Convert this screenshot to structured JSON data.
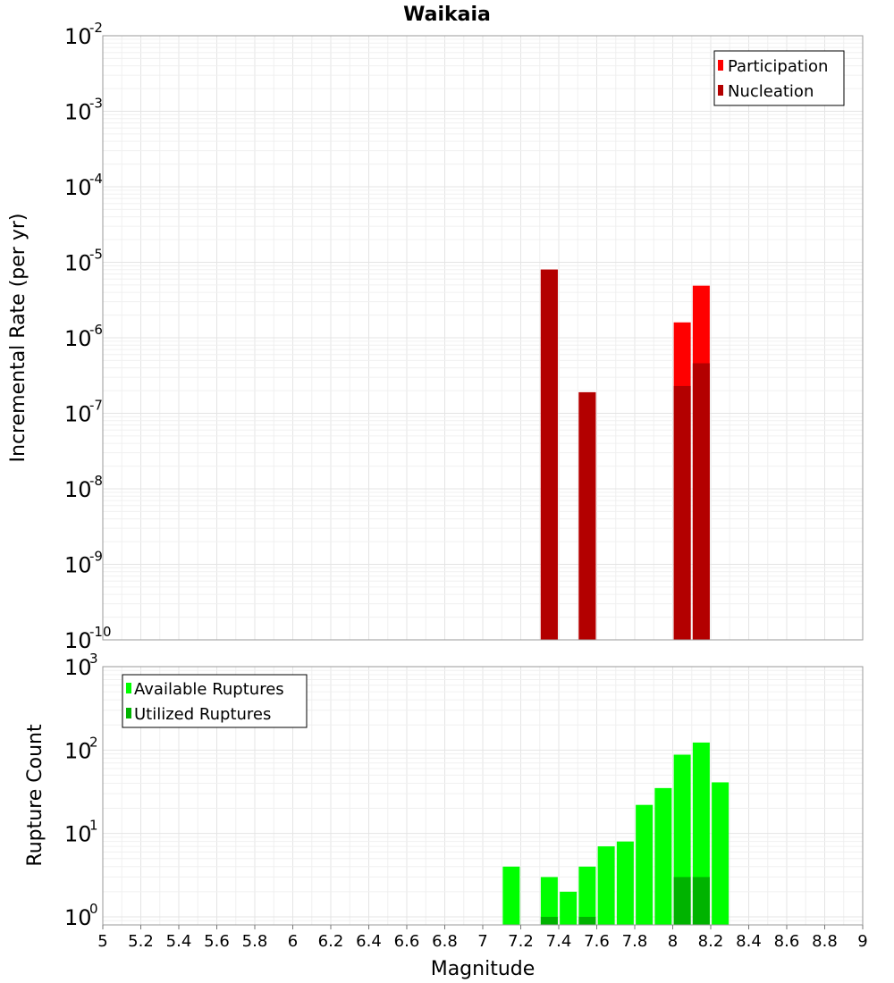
{
  "chart_data": [
    {
      "type": "bar",
      "title": "Waikaia",
      "xlabel": "",
      "ylabel": "Incremental Rate (per yr)",
      "yscale": "log",
      "ylim": [
        1e-10,
        0.01
      ],
      "xlim": [
        5,
        9
      ],
      "y_ticks": [
        {
          "base": "10",
          "exp": "-10"
        },
        {
          "base": "10",
          "exp": "-9"
        },
        {
          "base": "10",
          "exp": "-8"
        },
        {
          "base": "10",
          "exp": "-7"
        },
        {
          "base": "10",
          "exp": "-6"
        },
        {
          "base": "10",
          "exp": "-5"
        },
        {
          "base": "10",
          "exp": "-4"
        },
        {
          "base": "10",
          "exp": "-3"
        },
        {
          "base": "10",
          "exp": "-2"
        }
      ],
      "legend_position": "top-right",
      "series": [
        {
          "name": "Participation",
          "color": "#ff0000",
          "points": [
            {
              "x": 7.35,
              "y": 8e-06
            },
            {
              "x": 7.55,
              "y": 1.9e-07
            },
            {
              "x": 8.05,
              "y": 1.6e-06
            },
            {
              "x": 8.15,
              "y": 4.9e-06
            }
          ]
        },
        {
          "name": "Nucleation",
          "color": "#b30000",
          "points": [
            {
              "x": 7.35,
              "y": 8e-06
            },
            {
              "x": 7.55,
              "y": 1.9e-07
            },
            {
              "x": 8.05,
              "y": 2.3e-07
            },
            {
              "x": 8.15,
              "y": 4.6e-07
            }
          ]
        }
      ]
    },
    {
      "type": "bar",
      "title": "",
      "xlabel": "Magnitude",
      "ylabel": "Rupture Count",
      "yscale": "log",
      "ylim": [
        0.8,
        1000
      ],
      "xlim": [
        5,
        9
      ],
      "y_ticks": [
        {
          "base": "10",
          "exp": "0"
        },
        {
          "base": "10",
          "exp": "1"
        },
        {
          "base": "10",
          "exp": "2"
        },
        {
          "base": "10",
          "exp": "3"
        }
      ],
      "x_ticks": [
        "5",
        "5.2",
        "5.4",
        "5.6",
        "5.8",
        "6",
        "6.2",
        "6.4",
        "6.6",
        "6.8",
        "7",
        "7.2",
        "7.4",
        "7.6",
        "7.8",
        "8",
        "8.2",
        "8.4",
        "8.6",
        "8.8",
        "9"
      ],
      "legend_position": "top-left",
      "series": [
        {
          "name": "Available Ruptures",
          "color": "#00ff00",
          "points": [
            {
              "x": 7.15,
              "y": 4
            },
            {
              "x": 7.35,
              "y": 3
            },
            {
              "x": 7.45,
              "y": 2
            },
            {
              "x": 7.55,
              "y": 4
            },
            {
              "x": 7.65,
              "y": 7
            },
            {
              "x": 7.75,
              "y": 8
            },
            {
              "x": 7.85,
              "y": 22
            },
            {
              "x": 7.95,
              "y": 35
            },
            {
              "x": 8.05,
              "y": 88
            },
            {
              "x": 8.15,
              "y": 123
            },
            {
              "x": 8.25,
              "y": 41
            }
          ]
        },
        {
          "name": "Utilized Ruptures",
          "color": "#00b300",
          "points": [
            {
              "x": 7.35,
              "y": 1
            },
            {
              "x": 7.55,
              "y": 1
            },
            {
              "x": 8.05,
              "y": 3
            },
            {
              "x": 8.15,
              "y": 3
            }
          ]
        }
      ]
    }
  ]
}
